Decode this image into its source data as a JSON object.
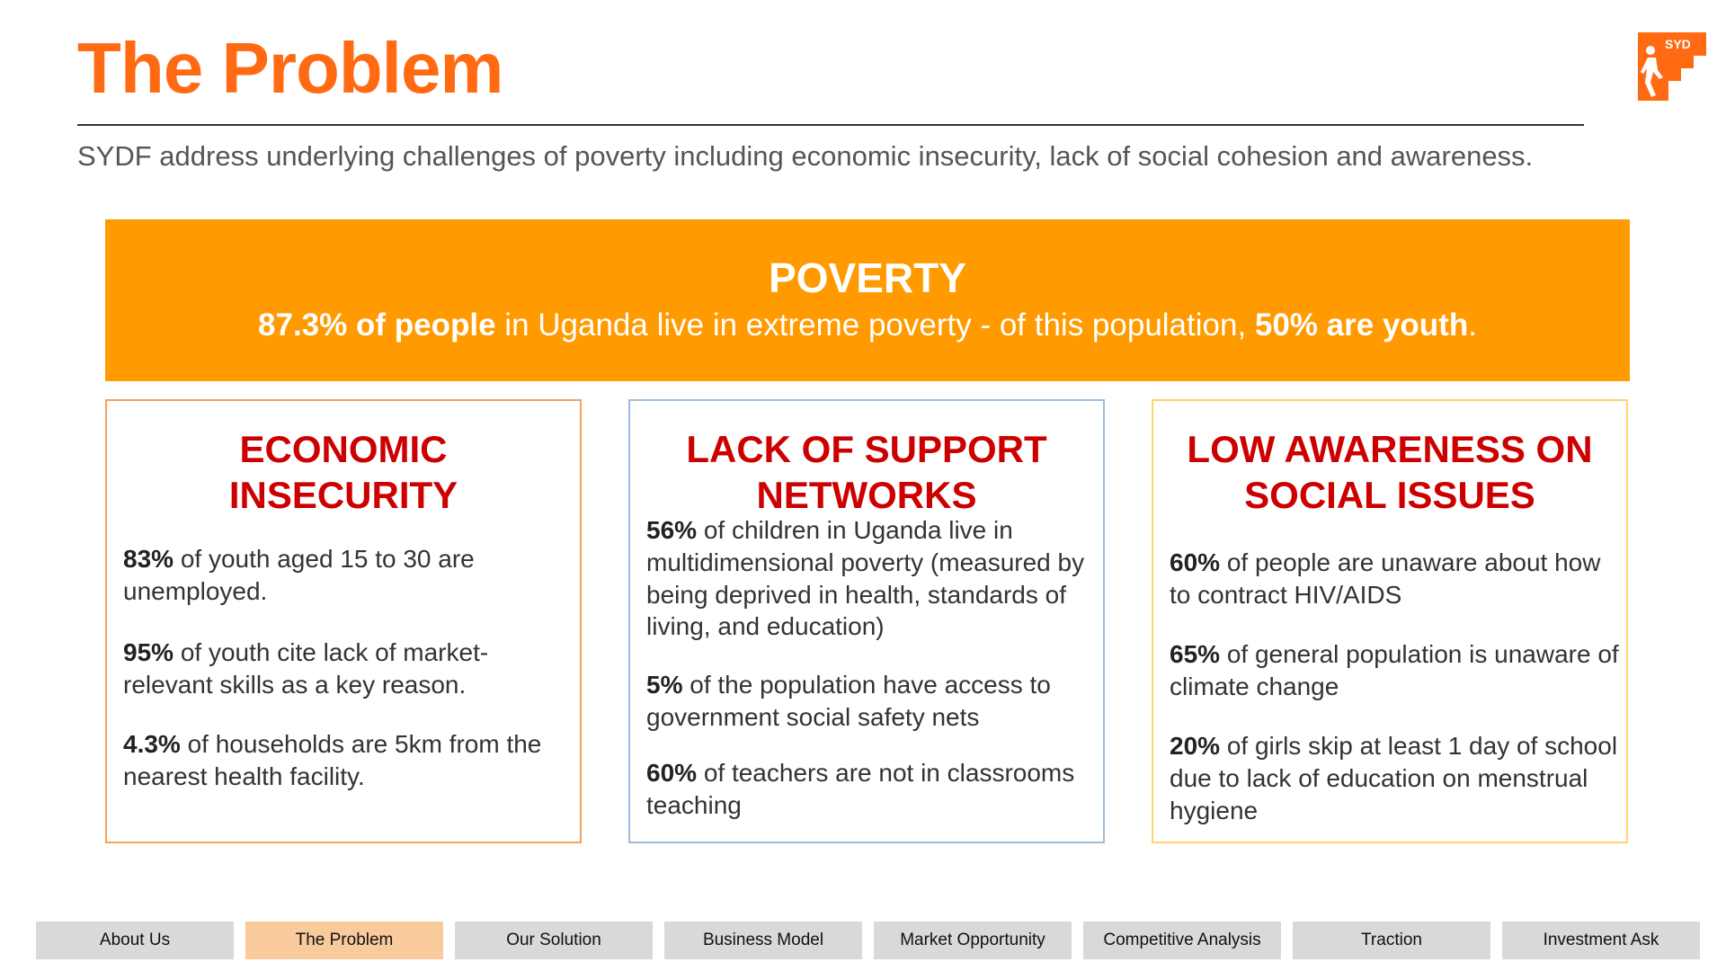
{
  "header": {
    "title": "The Problem",
    "subtitle": "SYDF address underlying challenges of poverty including economic insecurity, lack of social cohesion and awareness.",
    "logo_text": "SYD"
  },
  "banner": {
    "title": "POVERTY",
    "stat_bold_1": "87.3% of people",
    "text_1": " in Uganda live in extreme poverty - of this population, ",
    "stat_bold_2": "50% are youth",
    "text_2": "."
  },
  "cards": [
    {
      "title": "ECONOMIC INSECURITY",
      "stats": [
        {
          "value": "83%",
          "text": " of youth aged 15 to 30 are unemployed."
        },
        {
          "value": "95%",
          "text": " of youth cite lack of market-relevant skills as a key reason."
        },
        {
          "value": "4.3%",
          "text": " of households are 5km from the nearest health facility."
        }
      ]
    },
    {
      "title": "LACK OF SUPPORT NETWORKS",
      "stats": [
        {
          "value": "56%",
          "text": " of children in Uganda live in multidimensional poverty (measured by being deprived in health, standards of living, and education)"
        },
        {
          "value": "5%",
          "text": " of the population have access to government social safety nets"
        },
        {
          "value": "60%",
          "text": " of teachers are not in classrooms teaching"
        }
      ]
    },
    {
      "title": "LOW AWARENESS ON SOCIAL ISSUES",
      "stats": [
        {
          "value": "60%",
          "text": " of people are unaware about how to contract HIV/AIDS"
        },
        {
          "value": "65%",
          "text": " of general population is unaware of climate change"
        },
        {
          "value": "20%",
          "text": " of girls skip at least 1 day of school due to lack of education on menstrual hygiene"
        }
      ]
    }
  ],
  "nav": {
    "items": [
      "About Us",
      "The Problem",
      "Our Solution",
      "Business Model",
      "Market Opportunity",
      "Competitive Analysis",
      "Traction",
      "Investment Ask"
    ],
    "active": "The Problem"
  },
  "colors": {
    "title": "#FF6A13",
    "banner": "#FF9A00",
    "card_title": "#CC0000",
    "nav_active": "#F9CB9C",
    "nav_default": "#D9D9D9"
  },
  "icons": {
    "logo": "climbing-stairs-person-icon"
  }
}
